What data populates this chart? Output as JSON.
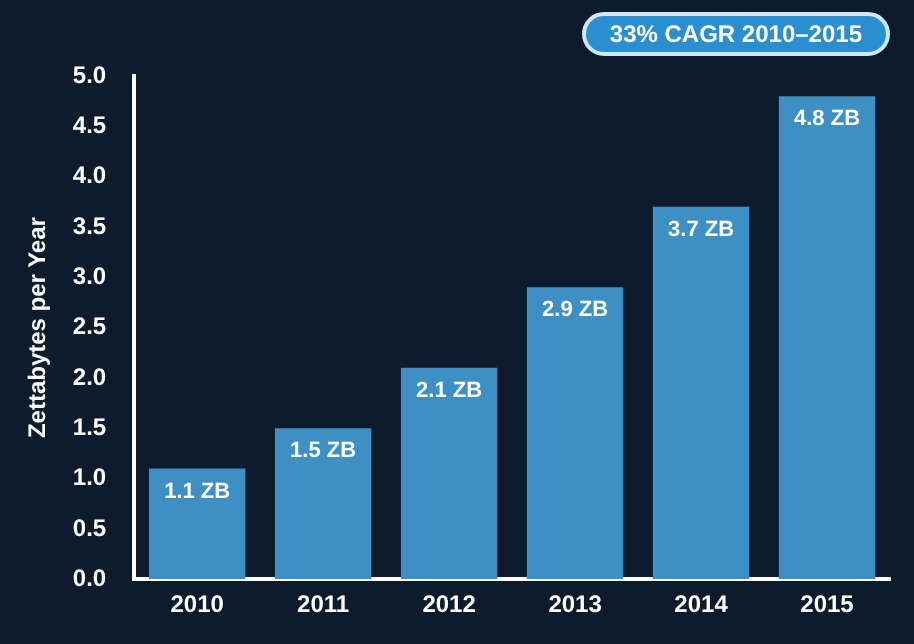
{
  "chart_data": {
    "type": "bar",
    "categories": [
      "2010",
      "2011",
      "2012",
      "2013",
      "2014",
      "2015"
    ],
    "values": [
      1.1,
      1.5,
      2.1,
      2.9,
      3.7,
      4.8
    ],
    "value_labels": [
      "1.1 ZB",
      "1.5 ZB",
      "2.1 ZB",
      "2.9 ZB",
      "3.7 ZB",
      "4.8 ZB"
    ],
    "color": "#3d8fc4",
    "ylabel": "Zettabytes per Year",
    "ylim": [
      0,
      5
    ],
    "yticks": [
      {
        "value": 0,
        "label": "0.0"
      },
      {
        "value": 0.5,
        "label": "0.5"
      },
      {
        "value": 1,
        "label": "1.0"
      },
      {
        "value": 1.5,
        "label": "1.5"
      },
      {
        "value": 2,
        "label": "2.0"
      },
      {
        "value": 2.5,
        "label": "2.5"
      },
      {
        "value": 3,
        "label": "3.0"
      },
      {
        "value": 3.5,
        "label": "3.5"
      },
      {
        "value": 4,
        "label": "4.0"
      },
      {
        "value": 4.5,
        "label": "4.5"
      },
      {
        "value": 5,
        "label": "5.0"
      }
    ],
    "annotations": [
      "33% CAGR 2010–2015"
    ],
    "grid": false,
    "legend": false
  }
}
